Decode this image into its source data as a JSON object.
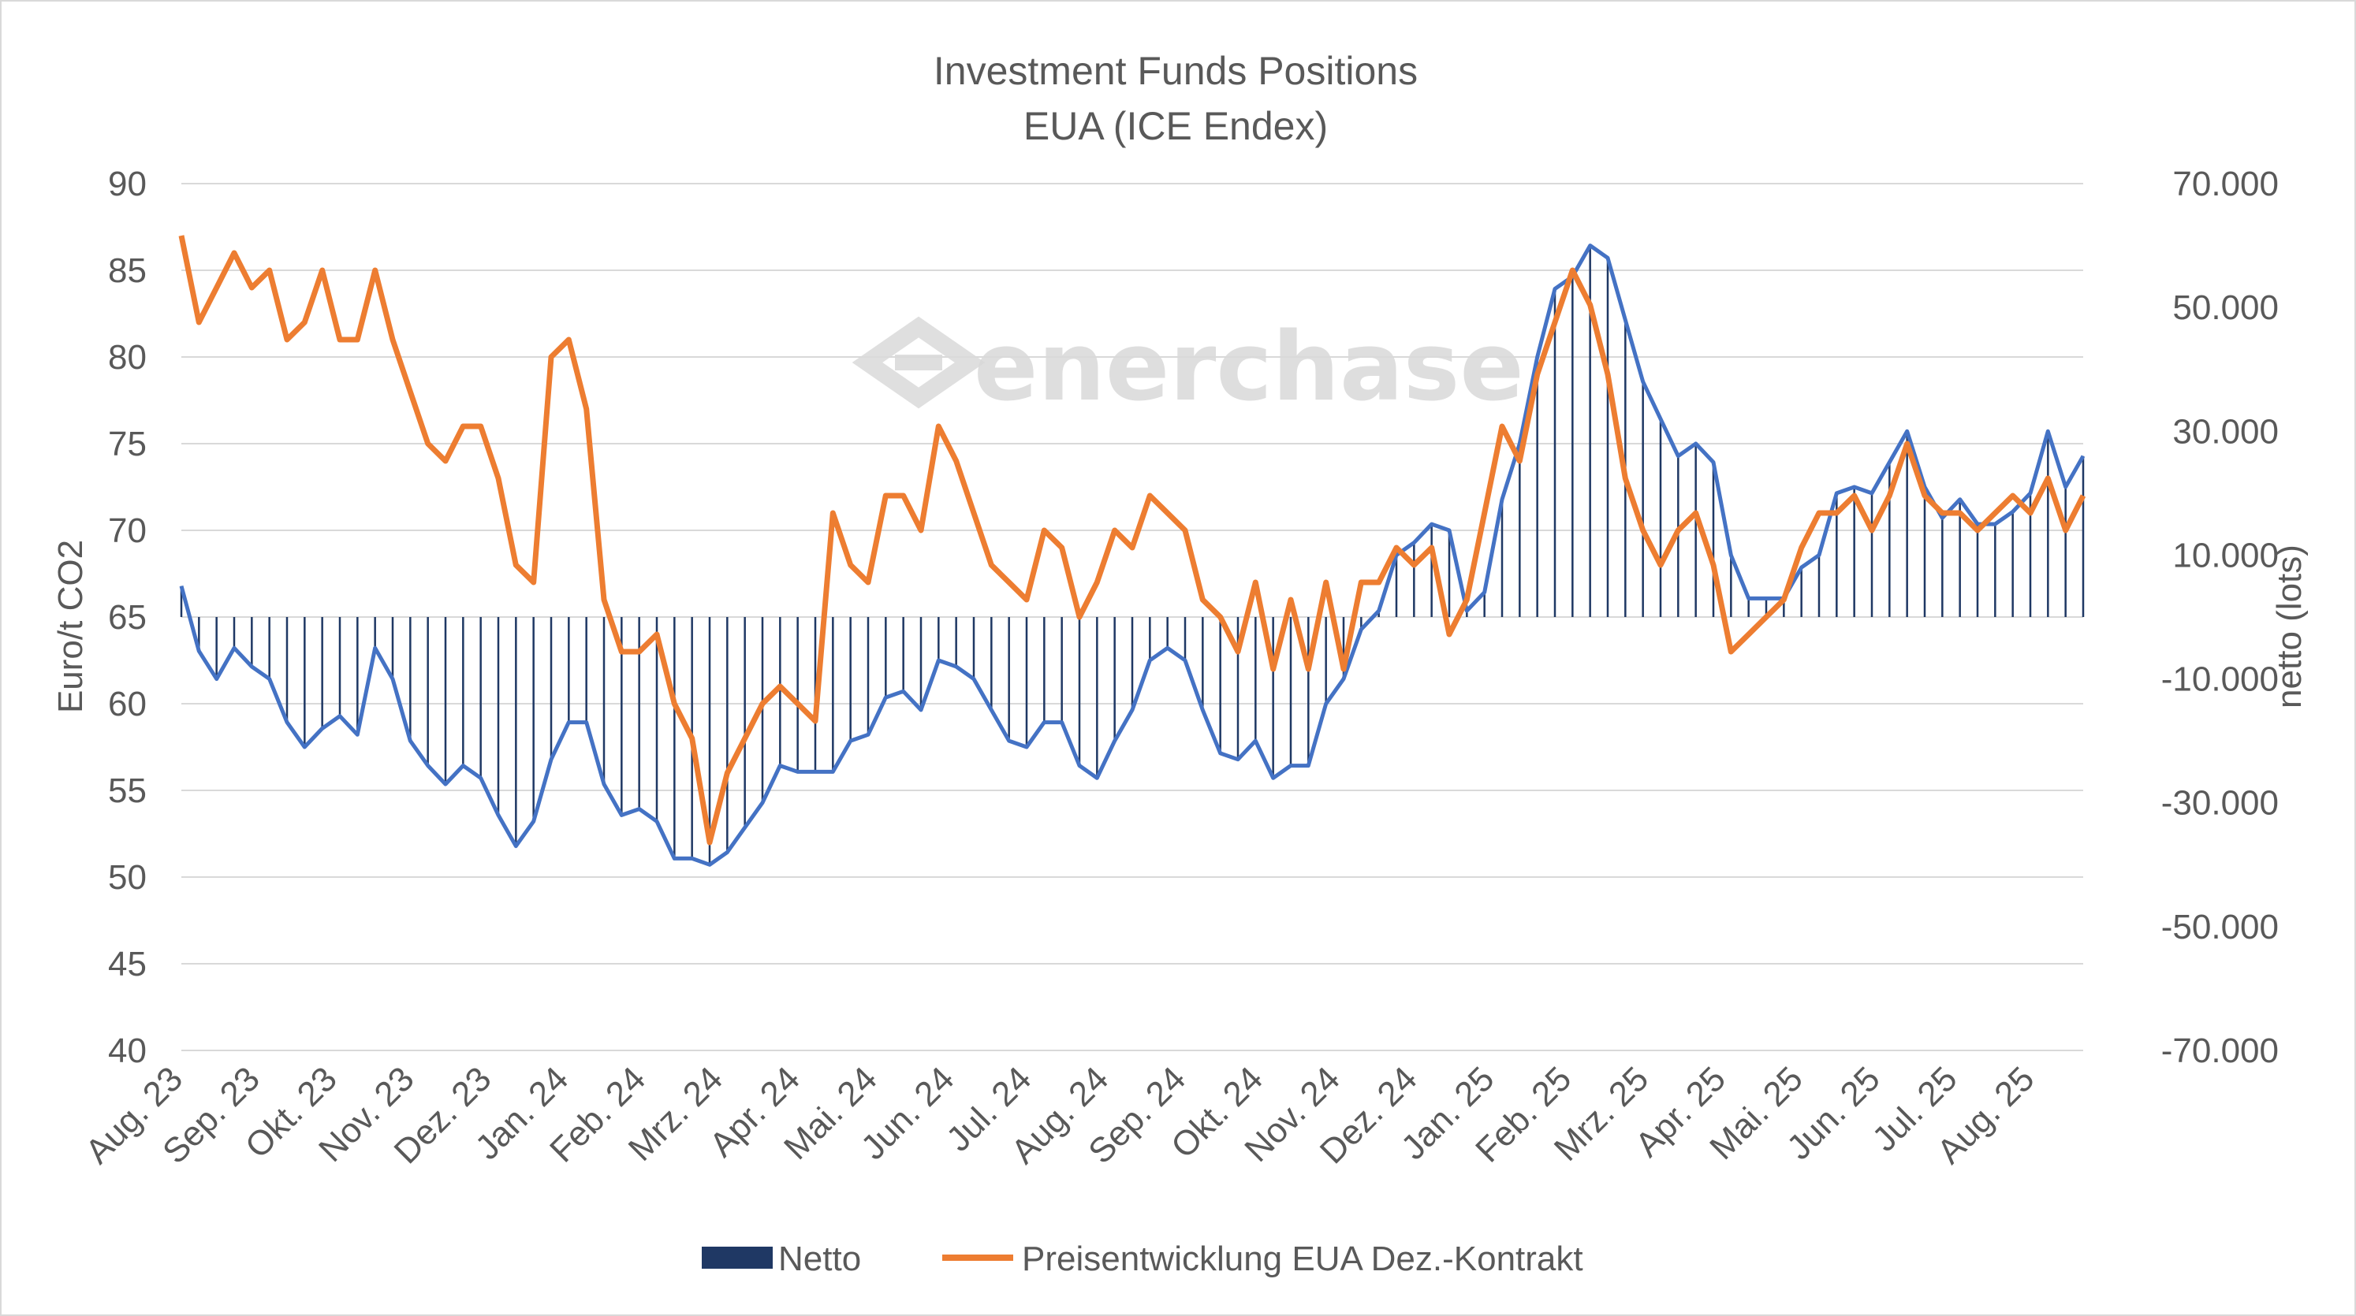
{
  "chart_data": {
    "type": "bar+line",
    "title": "Investment Funds Positions",
    "subtitle": "EUA (ICE Endex)",
    "watermark": "enerchase",
    "ylabel_left": "Euro/t CO2",
    "ylabel_right": "netto (lots)",
    "ylim_left": [
      40,
      90
    ],
    "ylim_right": [
      -70000,
      70000
    ],
    "yticks_left": [
      "90",
      "85",
      "80",
      "75",
      "70",
      "65",
      "60",
      "55",
      "50",
      "45",
      "40"
    ],
    "yticks_right": [
      "70.000",
      "50.000",
      "30.000",
      "10.000",
      "-10.000",
      "-30.000",
      "-50.000",
      "-70.000"
    ],
    "month_labels": [
      "Aug. 23",
      "Sep. 23",
      "Okt. 23",
      "Nov. 23",
      "Dez. 23",
      "Jan. 24",
      "Feb. 24",
      "Mrz. 24",
      "Apr. 24",
      "Mai. 24",
      "Jun. 24",
      "Jul. 24",
      "Aug. 24",
      "Sep. 24",
      "Okt. 24",
      "Nov. 24",
      "Dez. 24",
      "Jan. 25",
      "Feb. 25",
      "Mrz. 25",
      "Apr. 25",
      "Mai. 25",
      "Jun. 25",
      "Jul. 25",
      "Aug. 25"
    ],
    "legend_position": "bottom",
    "colors": {
      "netto": "#1f3864",
      "netto_line": "#4472c4",
      "price": "#ed7d31"
    },
    "series": [
      {
        "name": "Netto",
        "axis": "right",
        "values": [
          5000,
          -5500,
          -10000,
          -5000,
          -8000,
          -10000,
          -17000,
          -21000,
          -18000,
          -16000,
          -19000,
          -5000,
          -10000,
          -20000,
          -24000,
          -27000,
          -24000,
          -26000,
          -32000,
          -37000,
          -33000,
          -23000,
          -17000,
          -17000,
          -27000,
          -32000,
          -31000,
          -33000,
          -39000,
          -39000,
          -40000,
          -38000,
          -34000,
          -30000,
          -24000,
          -25000,
          -25000,
          -25000,
          -20000,
          -19000,
          -13000,
          -12000,
          -15000,
          -7000,
          -8000,
          -10000,
          -15000,
          -20000,
          -21000,
          -17000,
          -17000,
          -24000,
          -26000,
          -20000,
          -15000,
          -7000,
          -5000,
          -7000,
          -15000,
          -22000,
          -23000,
          -20000,
          -26000,
          -24000,
          -24000,
          -14000,
          -10000,
          -2000,
          1000,
          10000,
          12000,
          15000,
          14000,
          1000,
          4000,
          19000,
          28000,
          42000,
          53000,
          55000,
          60000,
          58000,
          48000,
          38000,
          32000,
          26000,
          28000,
          25000,
          10000,
          3000,
          3000,
          3000,
          8000,
          10000,
          20000,
          21000,
          20000,
          25000,
          30000,
          21000,
          16000,
          19000,
          15000,
          15000,
          17000,
          20000,
          30000,
          21000,
          26000
        ]
      },
      {
        "name": "Preisentwicklung EUA Dez.-Kontrakt",
        "axis": "left",
        "values": [
          87,
          82,
          84,
          86,
          84,
          85,
          81,
          82,
          85,
          81,
          81,
          85,
          81,
          78,
          75,
          74,
          76,
          76,
          73,
          68,
          67,
          80,
          81,
          77,
          66,
          63,
          63,
          64,
          60,
          58,
          52,
          56,
          58,
          60,
          61,
          60,
          59,
          71,
          68,
          67,
          72,
          72,
          70,
          76,
          74,
          71,
          68,
          67,
          66,
          70,
          69,
          65,
          67,
          70,
          69,
          72,
          71,
          70,
          66,
          65,
          63,
          67,
          62,
          66,
          62,
          67,
          62,
          67,
          67,
          69,
          68,
          69,
          64,
          66,
          71,
          76,
          74,
          79,
          82,
          85,
          83,
          79,
          73,
          70,
          68,
          70,
          71,
          68,
          63,
          64,
          65,
          66,
          69,
          71,
          71,
          72,
          70,
          72,
          75,
          72,
          71,
          71,
          70,
          71,
          72,
          71,
          73,
          70,
          72
        ]
      }
    ]
  }
}
